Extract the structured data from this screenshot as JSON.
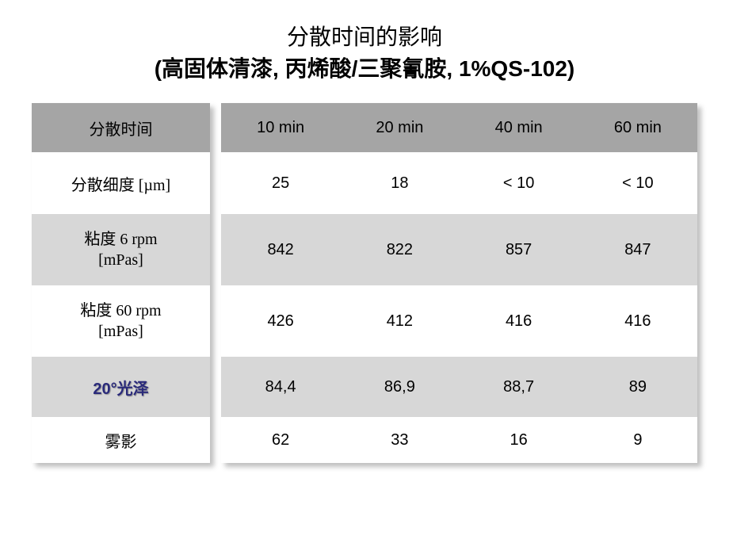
{
  "title": {
    "line1": "分散时间的影响",
    "line2": "(高固体清漆, 丙烯酸/三聚氰胺, 1%QS-102)"
  },
  "table": {
    "header_label": "分散时间",
    "columns": [
      "10 min",
      "20 min",
      "40 min",
      "60 min"
    ],
    "rows": [
      {
        "label": "分散细度 [µm]",
        "values": [
          "25",
          "18",
          "< 10",
          "< 10"
        ]
      },
      {
        "label": "粘度 6 rpm\n[mPas]",
        "values": [
          "842",
          "822",
          "857",
          "847"
        ]
      },
      {
        "label": "粘度 60 rpm\n[mPas]",
        "values": [
          "426",
          "412",
          "416",
          "416"
        ]
      },
      {
        "label_prefix": "20°",
        "label_suffix": "光泽",
        "values": [
          "84,4",
          "86,9",
          "88,7",
          "89"
        ]
      },
      {
        "label": "雾影",
        "values": [
          "62",
          "33",
          "16",
          "9"
        ]
      }
    ]
  },
  "colors": {
    "header_bg": "#a5a5a5",
    "stripe_bg": "#d7d7d7",
    "white_bg": "#ffffff",
    "gloss_text": "#2a2a7a"
  }
}
